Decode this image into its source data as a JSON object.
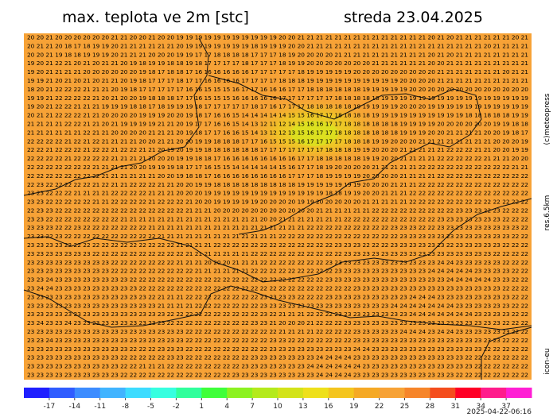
{
  "header": {
    "title": "max. teplota ve 2m [stc]",
    "date": "streda 23.04.2025"
  },
  "side": {
    "copyright": "(c)meteopress",
    "resolution": "res.6.5km",
    "model": "icon-eu"
  },
  "footer": {
    "timestamp": "2025-04-22-06:16"
  },
  "map": {
    "background": "#f7a236",
    "rows": [
      "20 20 21 20 20 20 20 20 20 21 21 20 20 21 20 20 19 19 19 19 19 19 19 19 19 19 19 20 20 21 21 21 21 21 21 21 21 21 21 21 21 21 21 20 21 20 21 21 21 21 21 21 20 21",
      "20 21 21 20 18 17 18 19 19 20 21 21 21 21 21 21 20 19 19 19 19 19 19 19 18 19 19 19 20 20 21 21 21 21 21 21 21 21 21 21 21 21 21 21 21 21 21 21 21 20 21 21 21 21",
      "20 20 21 19 18 18 19 19 19 20 21 21 21 20 20 20 19 19 17 17 18 18 18 18 17 17 17 18 19 20 20 20 20 21 21 21 21 21 21 21 21 21 21 20 21 20 21 21 21 21 21 21 21 21",
      "19 20 21 22 21 20 21 20 21 21 20 19 18 19 19 18 18 19 18 17 17 17 17 18 17 17 17 18 19 19 20 20 20 20 20 20 20 21 21 21 21 21 21 20 20 21 21 21 21 21 21 21 21 21",
      "19 20 21 21 21 21 20 20 20 20 20 20 19 18 17 18 18 17 16 16 16 16 16 16 17 17 17 17 17 18 19 19 19 19 19 20 20 20 20 20 20 20 20 20 21 21 21 21 21 21 21 20 21 21",
      "19 19 21 20 21 20 21 20 21 21 20 19 18 17 17 17 18 17 17 16 16 16 16 17 17 17 17 18 18 18 19 19 19 19 19 19 19 19 19 19 20 20 20 20 21 21 21 21 21 21 21 21 21 21",
      "18 20 21 22 22 22 21 21 21 20 19 18 17 17 17 17 17 16 16 15 15 15 16 17 17 16 16 16 17 17 18 18 18 18 18 18 19 19 19 19 19 20 20 20 20 20 20 20 20 20 20 20 20 20",
      "19 19 21 22 22 22 22 21 20 21 20 20 19 18 18 18 17 17 16 15 15 15 16 16 16 16 16 17 17 17 17 17 17 18 18 18 18 18 19 19 19 19 19 19 19 19 19 19 19 19 19 19 19 19",
      "19 20 21 22 22 21 21 21 19 19 19 18 18 17 18 19 19 19 18 17 17 17 17 17 18 17 16 17 17 17 18 18 18 18 18 19 19 19 19 19 20 20 20 19 19 19 19 19 19 19 19 19 19 19",
      "20 21 21 22 22 22 21 21 20 20 20 20 19 19 19 20 20 19 18 17 16 16 15 14 14 14 14 14 15 15 16 17 17 18 18 18 18 19 19 19 19 19 19 19 19 19 19 18 18 18 18 18 19 19",
      "21 21 21 21 22 22 21 21 20 21 19 19 19 19 21 21 20 19 17 17 16 16 15 14 13 12 11 12 14 15 16 16 17 17 18 18 18 18 18 18 19 19 19 19 20 20 20 20 20 20 19 19 18 18",
      "21 21 21 21 21 21 22 21 21 20 20 20 20 21 21 21 20 19 18 17 17 16 16 15 14 13 12 12 13 15 16 17 17 18 18 18 18 18 18 18 19 19 19 20 20 21 21 21 21 20 20 19 18 17",
      "22 22 22 22 21 22 21 22 21 21 21 21 20 20 21 21 20 20 19 19 18 18 18 17 17 16 15 15 15 16 17 17 17 17 18 18 18 19 19 20 20 20 21 21 21 21 21 21 21 21 20 20 20 19",
      "22 22 21 22 22 22 21 22 22 21 22 22 21 21 20 19 20 19 19 18 18 18 18 18 18 17 17 17 17 17 17 17 18 18 18 19 19 20 20 20 21 21 21 21 21 22 22 22 21 21 20 20 19 19",
      "22 22 22 22 21 22 22 22 22 21 21 21 21 20 20 20 19 19 18 18 17 16 16 16 16 16 16 16 16 17 17 18 18 18 18 18 19 19 20 20 21 21 21 21 22 22 22 22 22 21 21 21 20 20",
      "22 22 22 22 22 22 22 21 21 21 21 20 20 19 19 19 18 17 17 16 15 15 14 14 14 14 14 15 16 17 17 18 19 20 20 20 20 21 21 21 21 21 22 22 22 22 22 22 22 22 22 22 21 21",
      "22 22 22 22 22 22 22 22 21 21 21 21 21 21 20 20 19 18 18 17 16 16 16 16 16 16 16 16 17 17 17 18 19 19 19 19 20 20 20 20 21 21 21 21 22 22 22 22 22 22 22 22 22 22",
      "22 23 22 22 22 22 22 21 22 21 21 22 22 22 21 21 20 20 19 19 18 18 18 18 18 18 18 18 18 19 19 19 19 19 19 19 20 20 20 21 21 21 22 22 22 22 22 22 22 22 22 22 22 22",
      "23 23 22 22 22 21 21 21 21 22 22 22 22 21 21 21 20 20 20 19 19 19 19 19 19 19 19 19 19 19 19 19 18 18 19 19 20 20 21 21 21 22 22 22 22 22 22 22 22 22 22 22 22 22",
      "23 23 22 22 22 22 22 21 21 22 22 22 22 21 22 22 22 21 20 20 19 19 19 19 19 20 20 20 20 19 19 20 20 20 20 20 21 21 21 21 21 22 22 22 22 22 22 22 22 22 22 22 22 22",
      "22 23 23 22 22 22 22 22 22 22 22 22 22 22 22 22 22 21 21 21 20 20 20 20 20 20 20 20 20 20 20 21 21 21 21 21 21 22 22 22 22 22 22 22 22 22 23 23 23 22 23 22 22 22",
      "23 23 22 22 22 22 22 22 22 22 21 21 21 21 21 21 21 21 21 21 21 21 21 21 21 20 20 21 21 21 21 21 21 21 22 22 22 22 22 22 22 22 22 22 23 23 23 23 23 23 23 22 22 22",
      "23 23 23 22 22 23 22 22 22 22 22 22 22 21 21 21 21 21 21 21 21 21 21 21 21 21 21 21 21 21 22 22 22 22 22 22 22 22 22 23 23 23 22 22 23 23 23 23 23 23 23 23 23 22",
      "23 23 22 23 22 22 22 22 22 22 22 22 22 22 21 21 21 21 21 21 21 21 21 21 21 21 21 22 22 22 22 22 22 22 22 22 22 22 22 22 23 23 23 23 23 23 23 23 23 23 23 23 22 22",
      "23 23 23 23 22 22 22 22 22 22 22 22 22 22 22 22 21 21 21 21 22 22 22 22 22 22 22 22 22 22 22 22 22 23 23 23 22 22 22 23 23 23 23 23 23 22 23 23 23 23 23 22 22 22",
      "23 23 23 23 23 23 23 22 22 22 22 22 22 22 22 22 22 21 21 21 21 21 21 21 22 22 22 22 22 22 22 22 22 22 23 23 23 23 23 23 23 23 23 23 23 23 23 23 23 23 22 22 22 22",
      "23 23 23 23 23 23 23 23 23 22 22 22 22 22 22 22 21 21 21 20 20 20 21 21 21 22 22 22 22 22 22 22 23 23 23 23 23 23 23 23 23 23 23 23 24 24 23 23 23 23 23 22 22 22",
      "23 23 23 23 23 23 23 23 23 22 22 22 22 22 22 22 22 22 21 21 21 21 21 21 22 22 22 22 22 22 22 22 22 23 23 23 23 23 23 23 23 23 23 24 24 24 24 24 23 23 23 23 22 22",
      "23 23 24 23 23 23 23 23 23 23 23 22 22 22 22 22 22 22 22 22 22 22 22 22 22 22 22 22 22 22 22 22 23 23 23 23 23 23 23 23 23 23 23 23 23 24 24 24 24 24 23 23 22 22",
      "23 24 24 23 23 23 23 23 23 23 23 23 22 22 22 22 22 22 22 22 22 22 22 22 22 22 22 22 22 22 22 22 22 22 22 23 23 23 23 23 23 23 23 23 23 23 23 23 23 23 23 22 22 22",
      "23 23 23 23 23 23 23 23 23 23 23 23 23 22 21 21 21 22 22 22 22 22 22 22 22 23 23 23 23 22 22 22 23 23 23 23 23 23 23 23 23 24 24 24 23 23 23 23 23 23 23 23 22 22",
      "23 23 23 23 23 23 23 23 23 23 23 23 23 23 21 21 21 21 22 22 22 22 22 22 22 23 23 23 23 23 23 23 23 23 23 23 23 23 23 24 24 24 24 24 24 24 23 23 23 23 23 23 22 22",
      "23 23 23 23 23 23 23 23 23 23 23 23 23 23 23 22 22 22 22 22 22 22 22 22 22 23 22 21 21 21 22 22 22 23 23 23 23 23 23 23 23 24 24 24 24 24 24 24 23 23 23 23 22 22",
      "23 24 23 23 24 23 23 23 23 23 23 23 23 23 23 22 22 22 22 22 22 22 22 22 23 23 21 20 20 20 21 22 22 22 23 23 23 23 23 23 23 23 23 23 23 23 23 23 23 23 23 22 22 22",
      "23 23 23 23 23 23 23 23 23 23 23 23 23 23 23 23 23 22 22 22 22 22 22 22 22 22 22 21 21 21 21 22 22 22 22 23 23 23 23 23 24 24 24 23 24 24 23 23 23 23 23 23 22 22",
      "23 23 24 23 23 23 23 23 23 23 23 23 23 23 23 23 23 22 22 22 22 22 22 22 22 22 23 23 22 22 22 22 22 22 22 23 23 23 23 23 23 23 23 23 23 23 23 23 23 23 23 22 22 22",
      "23 23 23 23 23 23 23 23 23 23 23 22 22 22 23 23 23 22 22 22 22 22 22 22 22 22 23 23 23 23 23 23 23 23 23 24 24 23 23 23 23 23 23 23 23 23 23 23 23 22 22 22 22 22",
      "23 23 23 23 23 23 23 23 23 23 22 22 22 22 22 23 23 22 22 22 22 22 22 22 23 23 23 23 23 23 23 24 24 24 24 23 23 23 23 23 23 23 23 23 23 23 23 22 22 22 22 22 22 22",
      "23 23 23 23 23 23 23 23 23 23 22 22 21 21 21 22 22 22 22 22 22 22 22 23 23 23 23 23 23 23 24 24 24 24 24 24 23 23 23 23 23 23 23 23 23 23 23 23 22 22 22 22 22 22",
      "23 23 23 23 23 23 23 23 23 23 22 22 22 22 22 22 22 22 22 22 22 22 23 23 23 23 23 23 23 23 23 24 24 24 24 23 23 23 23 23 23 23 23 23 23 23 22 22 22 22 22 22 22 22"
    ]
  },
  "colorbar": {
    "range": [
      -20,
      40
    ],
    "ticks": [
      -17,
      -14,
      -11,
      -8,
      -5,
      -2,
      1,
      4,
      7,
      10,
      13,
      16,
      19,
      22,
      25,
      28,
      31,
      34,
      37
    ],
    "colors": [
      "#1f1fff",
      "#2f5cff",
      "#3c8cff",
      "#41b4ff",
      "#3ddcff",
      "#37ffe0",
      "#30ff9c",
      "#3fff3a",
      "#8cf221",
      "#b4ea1c",
      "#d3e319",
      "#eee01a",
      "#f4c51e",
      "#f5a925",
      "#f7a236",
      "#f6852a",
      "#f44d1d",
      "#ff0026",
      "#ff1c8c",
      "#ff1fd4"
    ]
  }
}
